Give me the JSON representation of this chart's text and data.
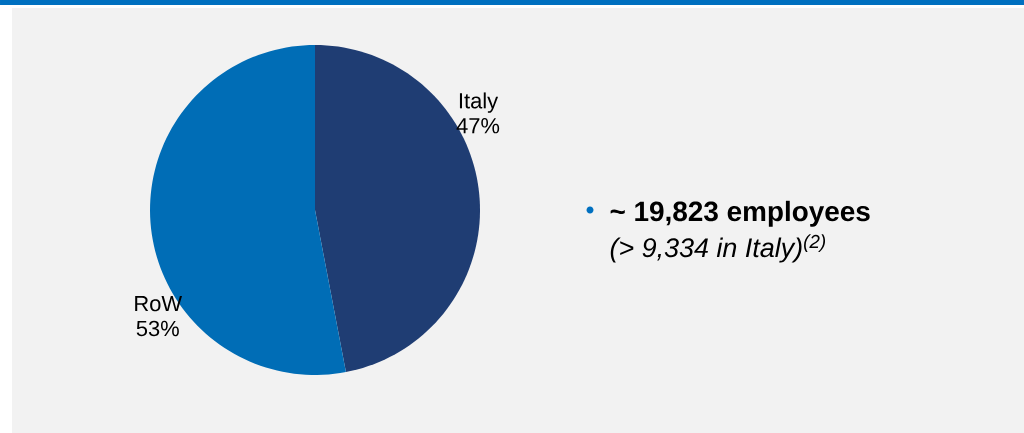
{
  "chart_data": {
    "type": "pie",
    "categories": [
      "Italy",
      "RoW"
    ],
    "values": [
      47,
      53
    ],
    "colors": [
      "#1f3d73",
      "#006db6"
    ],
    "value_labels": [
      "47%",
      "53%"
    ],
    "annotations": [
      "~ 19,823 employees",
      "(> 9,334 in Italy)$^{(2)}$"
    ]
  }
}
